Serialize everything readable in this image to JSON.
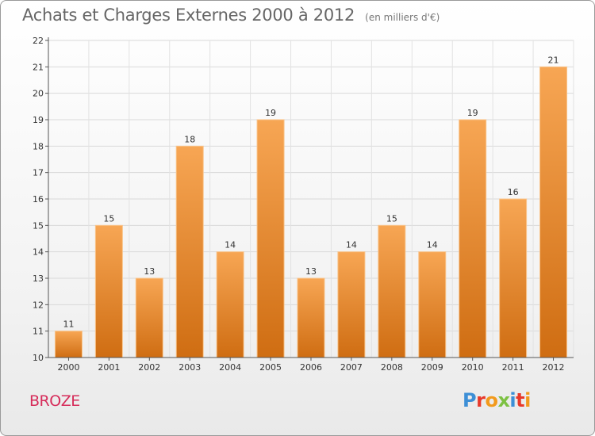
{
  "title": "Achats et Charges Externes 2000 à 2012",
  "subtitle": "(en milliers d'€)",
  "commune": "BROZE",
  "logo": {
    "letters": [
      "P",
      "r",
      "o",
      "x",
      "i",
      "t",
      "i"
    ],
    "colors": [
      "#3d8fd6",
      "#e8392a",
      "#f29a1c",
      "#7cc142",
      "#3d8fd6",
      "#e8392a",
      "#f29a1c"
    ]
  },
  "chart_data": {
    "type": "bar",
    "title": "Achats et Charges Externes 2000 à 2012",
    "subtitle": "(en milliers d'€)",
    "categories": [
      "2000",
      "2001",
      "2002",
      "2003",
      "2004",
      "2005",
      "2006",
      "2007",
      "2008",
      "2009",
      "2010",
      "2011",
      "2012"
    ],
    "values": [
      11,
      15,
      13,
      18,
      14,
      19,
      13,
      14,
      15,
      14,
      19,
      16,
      21
    ],
    "ylim": [
      10,
      22
    ],
    "yticks": [
      10,
      11,
      12,
      13,
      14,
      15,
      16,
      17,
      18,
      19,
      20,
      21,
      22
    ],
    "grid": true,
    "bar_color_top": "#f7a654",
    "bar_color_bottom": "#cf6d12"
  }
}
